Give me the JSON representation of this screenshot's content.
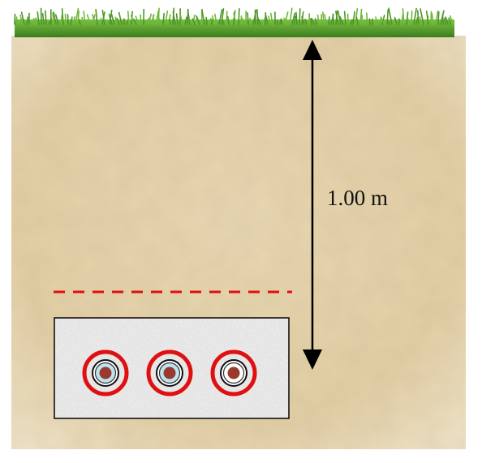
{
  "depth_label": "1.00 m",
  "colors": {
    "grass": "#4f9a2a",
    "soil": "#e6d2aa",
    "warning_line": "#e01010",
    "cable_ring": "#e01010",
    "backfill": "#f2f2f2",
    "cable_core_copper": "#9a3a2e",
    "cable_core_insulated": "#bde4ee"
  },
  "cables": [
    {
      "name": "cable-left",
      "core": "insulated"
    },
    {
      "name": "cable-middle",
      "core": "insulated"
    },
    {
      "name": "cable-right",
      "core": "copper"
    }
  ],
  "icons": {
    "dimension": "double-arrow-icon"
  }
}
